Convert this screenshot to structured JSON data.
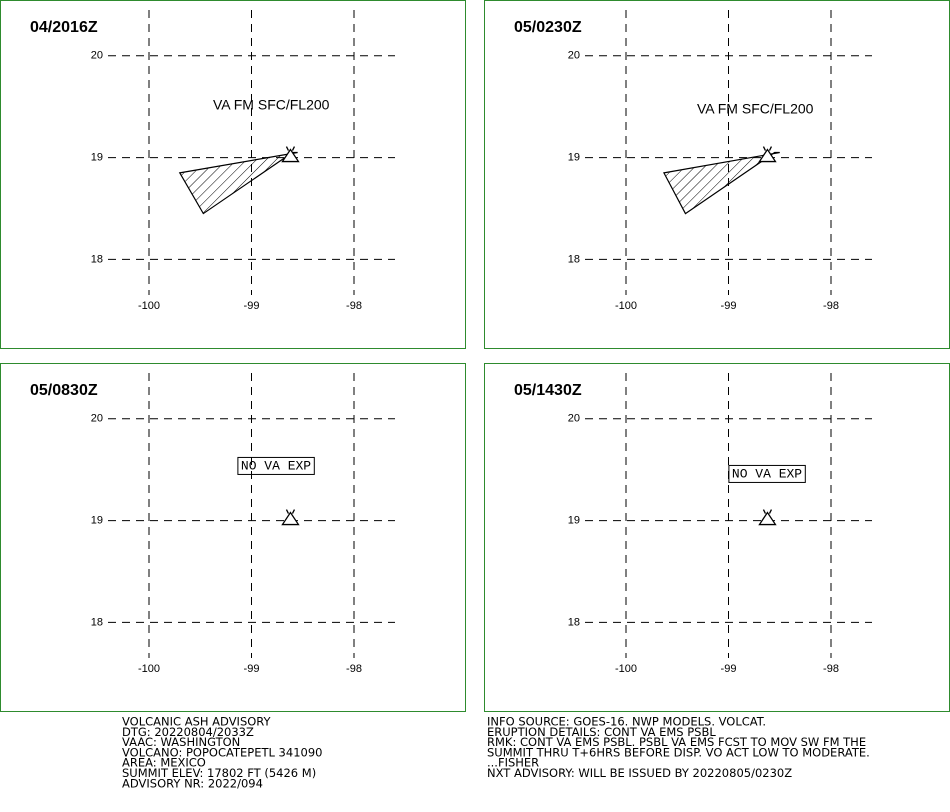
{
  "panels": [
    {
      "title": "04/2016Z",
      "label": "VA FM SFC/FL200",
      "label_boxed": false,
      "xlim": [
        -100.4,
        -97.6
      ],
      "ylim": [
        17.65,
        20.45
      ],
      "xticks": [
        -100,
        -99,
        -98
      ],
      "yticks": [
        18,
        19,
        20
      ],
      "volcano": {
        "lon": -98.62,
        "lat": 19.02
      },
      "ash_polygon": {
        "lon": [
          -99.7,
          -99.47,
          -98.6,
          -98.55
        ],
        "lat": [
          18.85,
          18.45,
          19.05,
          19.05
        ]
      }
    },
    {
      "title": "05/0230Z",
      "label": "VA FM SFC/FL200",
      "label_boxed": false,
      "xlim": [
        -100.4,
        -97.6
      ],
      "ylim": [
        17.65,
        20.45
      ],
      "xticks": [
        -100,
        -99,
        -98
      ],
      "yticks": [
        18,
        19,
        20
      ],
      "volcano": {
        "lon": -98.62,
        "lat": 19.02
      },
      "ash_polygon": {
        "lon": [
          -99.63,
          -99.42,
          -98.55,
          -98.5
        ],
        "lat": [
          18.85,
          18.45,
          19.05,
          19.05
        ]
      }
    },
    {
      "title": "05/0830Z",
      "label": "NO VA EXP",
      "label_boxed": true,
      "xlim": [
        -100.4,
        -97.6
      ],
      "ylim": [
        17.65,
        20.45
      ],
      "xticks": [
        -100,
        -99,
        -98
      ],
      "yticks": [
        18,
        19,
        20
      ],
      "volcano": {
        "lon": -98.62,
        "lat": 19.02
      }
    },
    {
      "title": "05/1430Z",
      "label": "NO VA EXP",
      "label_boxed": true,
      "xlim": [
        -100.4,
        -97.6
      ],
      "ylim": [
        17.65,
        20.45
      ],
      "xticks": [
        -100,
        -99,
        -98
      ],
      "yticks": [
        18,
        19,
        20
      ],
      "volcano": {
        "lon": -98.62,
        "lat": 19.02
      }
    }
  ],
  "advisory": {
    "left": [
      "VOLCANIC ASH ADVISORY",
      "DTG: 20220804/2033Z",
      "VAAC: WASHINGTON",
      "VOLCANO: POPOCATEPETL 341090",
      "AREA: MEXICO",
      "SUMMIT ELEV: 17802 FT (5426 M)",
      "ADVISORY NR: 2022/094"
    ],
    "right": [
      "INFO SOURCE: GOES-16. NWP MODELS. VOLCAT.",
      "ERUPTION DETAILS: CONT VA EMS PSBL",
      "RMK: CONT VA EMS PSBL. PSBL VA EMS FCST TO MOV SW FM THE",
      "SUMMIT THRU T+6HRS BEFORE DISP. VO ACT LOW TO MODERATE.",
      "...FISHER",
      "NXT ADVISORY: WILL BE ISSUED BY 20220805/0230Z"
    ]
  }
}
